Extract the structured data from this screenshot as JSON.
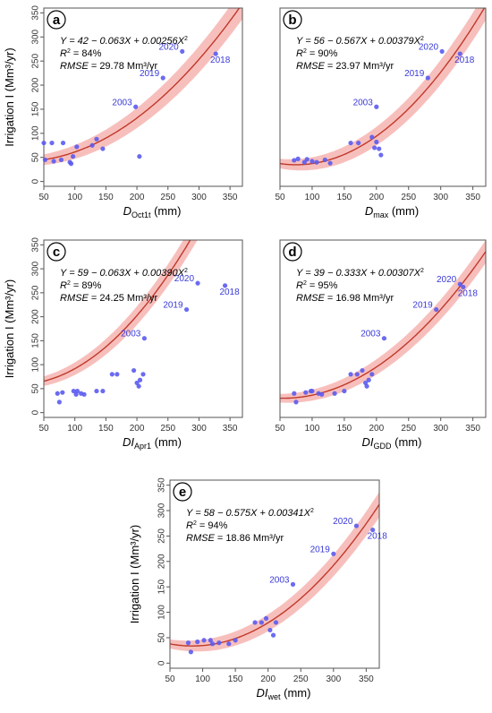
{
  "colors": {
    "band": "#f4a9a6",
    "curve": "#c0392b",
    "points": "#5b5bf0",
    "labels": "#3a3ad8",
    "frame": "#555555"
  },
  "ylabel": "Irrigation I (Mm³/yr)",
  "chart_data": [
    {
      "type": "scatter",
      "panel_label": "a",
      "xlabel_main": "D",
      "xlabel_sub": "Oct1t",
      "xlabel_unit": " (mm)",
      "ylabel": "Irrigation I (Mm³/yr)",
      "equation": {
        "prefix": "Y = 42 − 0.063X + 0.00256X",
        "exp": "2",
        "r2_prefix": "R",
        "r2_value": " = 84%",
        "rmse_label": "RMSE",
        "rmse_value": " = 29.78 Mm³/yr"
      },
      "fit": {
        "a": 42,
        "b": -0.063,
        "c": 0.00256
      },
      "band_halfwidth": [
        11,
        32
      ],
      "xlim": [
        50,
        370
      ],
      "ylim": [
        -10,
        360
      ],
      "xticks": [
        50,
        100,
        150,
        200,
        250,
        300,
        350
      ],
      "yticks": [
        0,
        50,
        100,
        150,
        200,
        250,
        300,
        350
      ],
      "points": [
        {
          "x": 50,
          "y": 80
        },
        {
          "x": 52,
          "y": 45
        },
        {
          "x": 63,
          "y": 80
        },
        {
          "x": 66,
          "y": 42
        },
        {
          "x": 78,
          "y": 45
        },
        {
          "x": 81,
          "y": 80
        },
        {
          "x": 92,
          "y": 40
        },
        {
          "x": 94,
          "y": 37
        },
        {
          "x": 97,
          "y": 52
        },
        {
          "x": 103,
          "y": 72
        },
        {
          "x": 128,
          "y": 75
        },
        {
          "x": 135,
          "y": 88
        },
        {
          "x": 145,
          "y": 68
        },
        {
          "x": 198,
          "y": 155,
          "label": "2003"
        },
        {
          "x": 204,
          "y": 52
        },
        {
          "x": 242,
          "y": 215,
          "label": "2019"
        },
        {
          "x": 273,
          "y": 270,
          "label": "2020"
        },
        {
          "x": 327,
          "y": 265,
          "label": "2018"
        }
      ]
    },
    {
      "type": "scatter",
      "panel_label": "b",
      "xlabel_main": "D",
      "xlabel_sub": "max",
      "xlabel_unit": " (mm)",
      "ylabel": "",
      "equation": {
        "prefix": "Y = 56 − 0.567X + 0.00379X",
        "exp": "2",
        "r2_prefix": "R",
        "r2_value": " = 90%",
        "rmse_label": "RMSE",
        "rmse_value": " = 23.97 Mm³/yr"
      },
      "fit": {
        "a": 56,
        "b": -0.567,
        "c": 0.00379
      },
      "band_halfwidth": [
        10,
        30
      ],
      "xlim": [
        50,
        370
      ],
      "ylim": [
        -10,
        360
      ],
      "xticks": [
        50,
        100,
        150,
        200,
        250,
        300,
        350
      ],
      "yticks": [],
      "points": [
        {
          "x": 72,
          "y": 44
        },
        {
          "x": 78,
          "y": 47
        },
        {
          "x": 88,
          "y": 40
        },
        {
          "x": 92,
          "y": 46
        },
        {
          "x": 100,
          "y": 42
        },
        {
          "x": 107,
          "y": 40
        },
        {
          "x": 120,
          "y": 45
        },
        {
          "x": 128,
          "y": 38
        },
        {
          "x": 160,
          "y": 80
        },
        {
          "x": 172,
          "y": 80
        },
        {
          "x": 193,
          "y": 92
        },
        {
          "x": 197,
          "y": 70
        },
        {
          "x": 200,
          "y": 82
        },
        {
          "x": 204,
          "y": 68
        },
        {
          "x": 207,
          "y": 55
        },
        {
          "x": 200,
          "y": 155,
          "label": "2003"
        },
        {
          "x": 280,
          "y": 215,
          "label": "2019"
        },
        {
          "x": 302,
          "y": 270,
          "label": "2020"
        },
        {
          "x": 330,
          "y": 265,
          "label": "2018"
        }
      ]
    },
    {
      "type": "scatter",
      "panel_label": "c",
      "xlabel_main": "DI",
      "xlabel_sub": "Apr1",
      "xlabel_unit": " (mm)",
      "ylabel": "Irrigation I (Mm³/yr)",
      "equation": {
        "prefix": "Y = 59 − 0.063X + 0.00390X",
        "exp": "2",
        "r2_prefix": "R",
        "r2_value": " = 89%",
        "rmse_label": "RMSE",
        "rmse_value": " = 24.25 Mm³/yr"
      },
      "fit": {
        "a": 59,
        "b": -0.063,
        "c": 0.0039
      },
      "band_halfwidth": [
        10,
        30
      ],
      "xlim": [
        50,
        370
      ],
      "ylim": [
        -10,
        360
      ],
      "xticks": [
        50,
        100,
        150,
        200,
        250,
        300,
        350
      ],
      "yticks": [
        0,
        50,
        100,
        150,
        200,
        250,
        300,
        350
      ],
      "points": [
        {
          "x": 72,
          "y": 40
        },
        {
          "x": 75,
          "y": 22
        },
        {
          "x": 80,
          "y": 42
        },
        {
          "x": 98,
          "y": 45
        },
        {
          "x": 102,
          "y": 38
        },
        {
          "x": 104,
          "y": 45
        },
        {
          "x": 110,
          "y": 40
        },
        {
          "x": 115,
          "y": 38
        },
        {
          "x": 135,
          "y": 45
        },
        {
          "x": 145,
          "y": 45
        },
        {
          "x": 160,
          "y": 80
        },
        {
          "x": 168,
          "y": 80
        },
        {
          "x": 195,
          "y": 88
        },
        {
          "x": 200,
          "y": 62
        },
        {
          "x": 203,
          "y": 55
        },
        {
          "x": 205,
          "y": 68
        },
        {
          "x": 210,
          "y": 80
        },
        {
          "x": 212,
          "y": 155,
          "label": "2003"
        },
        {
          "x": 280,
          "y": 215,
          "label": "2019"
        },
        {
          "x": 298,
          "y": 270,
          "label": "2020"
        },
        {
          "x": 342,
          "y": 265,
          "label": "2018"
        }
      ]
    },
    {
      "type": "scatter",
      "panel_label": "d",
      "xlabel_main": "DI",
      "xlabel_sub": "GDD",
      "xlabel_unit": " (mm)",
      "ylabel": "",
      "equation": {
        "prefix": "Y = 39 − 0.333X + 0.00307X",
        "exp": "2",
        "r2_prefix": "R",
        "r2_value": " = 95%",
        "rmse_label": "RMSE",
        "rmse_value": " = 16.98 Mm³/yr"
      },
      "fit": {
        "a": 39,
        "b": -0.333,
        "c": 0.00307
      },
      "band_halfwidth": [
        9,
        24
      ],
      "xlim": [
        50,
        370
      ],
      "ylim": [
        -10,
        360
      ],
      "xticks": [
        50,
        100,
        150,
        200,
        250,
        300,
        350
      ],
      "yticks": [],
      "points": [
        {
          "x": 72,
          "y": 40
        },
        {
          "x": 75,
          "y": 22
        },
        {
          "x": 90,
          "y": 42
        },
        {
          "x": 98,
          "y": 45
        },
        {
          "x": 100,
          "y": 45
        },
        {
          "x": 110,
          "y": 40
        },
        {
          "x": 115,
          "y": 38
        },
        {
          "x": 135,
          "y": 40
        },
        {
          "x": 150,
          "y": 45
        },
        {
          "x": 160,
          "y": 80
        },
        {
          "x": 170,
          "y": 80
        },
        {
          "x": 178,
          "y": 88
        },
        {
          "x": 183,
          "y": 62
        },
        {
          "x": 185,
          "y": 55
        },
        {
          "x": 188,
          "y": 68
        },
        {
          "x": 193,
          "y": 80
        },
        {
          "x": 212,
          "y": 155,
          "label": "2003"
        },
        {
          "x": 293,
          "y": 215,
          "label": "2019"
        },
        {
          "x": 330,
          "y": 268,
          "label": "2020"
        },
        {
          "x": 335,
          "y": 262,
          "label": "2018"
        }
      ]
    },
    {
      "type": "scatter",
      "panel_label": "e",
      "xlabel_main": "DI",
      "xlabel_sub": "wet",
      "xlabel_unit": " (mm)",
      "ylabel": "Irrigation I (Mm³/yr)",
      "equation": {
        "prefix": "Y = 58 − 0.575X + 0.00341X",
        "exp": "2",
        "r2_prefix": "R",
        "r2_value": " = 94%",
        "rmse_label": "RMSE",
        "rmse_value": " = 18.86 Mm³/yr"
      },
      "fit": {
        "a": 58,
        "b": -0.575,
        "c": 0.00341
      },
      "band_halfwidth": [
        9,
        25
      ],
      "xlim": [
        50,
        370
      ],
      "ylim": [
        -10,
        360
      ],
      "xticks": [
        50,
        100,
        150,
        200,
        250,
        300,
        350
      ],
      "yticks": [
        0,
        50,
        100,
        150,
        200,
        250,
        300,
        350
      ],
      "points": [
        {
          "x": 78,
          "y": 40
        },
        {
          "x": 82,
          "y": 22
        },
        {
          "x": 92,
          "y": 42
        },
        {
          "x": 102,
          "y": 45
        },
        {
          "x": 112,
          "y": 45
        },
        {
          "x": 115,
          "y": 38
        },
        {
          "x": 125,
          "y": 40
        },
        {
          "x": 140,
          "y": 38
        },
        {
          "x": 150,
          "y": 45
        },
        {
          "x": 180,
          "y": 80
        },
        {
          "x": 190,
          "y": 80
        },
        {
          "x": 197,
          "y": 88
        },
        {
          "x": 203,
          "y": 65
        },
        {
          "x": 208,
          "y": 55
        },
        {
          "x": 212,
          "y": 80
        },
        {
          "x": 238,
          "y": 155,
          "label": "2003"
        },
        {
          "x": 300,
          "y": 215,
          "label": "2019"
        },
        {
          "x": 335,
          "y": 270,
          "label": "2020"
        },
        {
          "x": 360,
          "y": 262,
          "label": "2018"
        }
      ]
    }
  ]
}
